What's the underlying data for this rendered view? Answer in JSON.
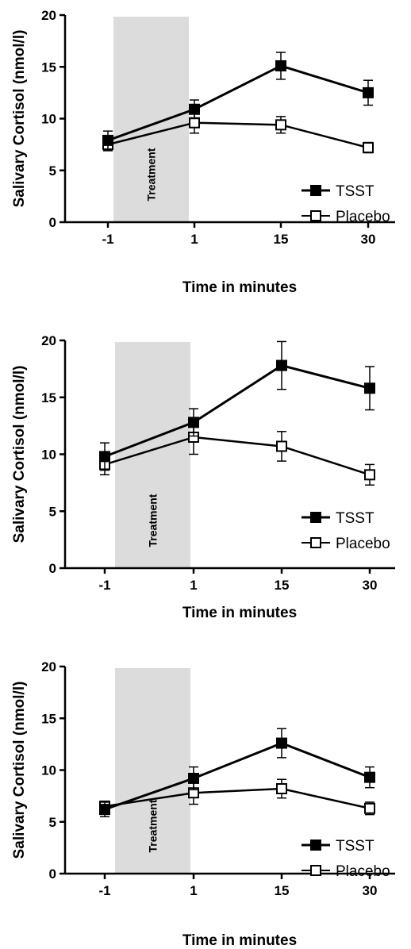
{
  "chart_data": [
    {
      "type": "line",
      "xlabel": "Time in minutes",
      "ylabel": "Salivary Cortisol (nmol/l)",
      "categories": [
        "-1",
        "1",
        "15",
        "30"
      ],
      "ylim": [
        0,
        20
      ],
      "yticks": [
        0,
        5,
        10,
        15,
        20
      ],
      "shaded_region": {
        "label": "Treatment",
        "from": "-1",
        "to": "1"
      },
      "legend_position": "bottom-right",
      "series": [
        {
          "name": "TSST",
          "marker": "filled-square",
          "values": [
            7.9,
            10.9,
            15.1,
            12.5
          ],
          "errors": [
            0.9,
            0.9,
            1.3,
            1.2
          ]
        },
        {
          "name": "Placebo",
          "marker": "open-square",
          "values": [
            7.5,
            9.6,
            9.4,
            7.2
          ],
          "errors": [
            0.6,
            1.0,
            0.8,
            0.5
          ]
        }
      ]
    },
    {
      "type": "line",
      "xlabel": "Time in minutes",
      "ylabel": "Salivary Cortisol (nmol/l)",
      "categories": [
        "-1",
        "1",
        "15",
        "30"
      ],
      "ylim": [
        0,
        20
      ],
      "yticks": [
        0,
        5,
        10,
        15,
        20
      ],
      "shaded_region": {
        "label": "Treatment",
        "from": "-1",
        "to": "1"
      },
      "legend_position": "bottom-right",
      "series": [
        {
          "name": "TSST",
          "marker": "filled-square",
          "values": [
            9.8,
            12.8,
            17.8,
            15.8
          ],
          "errors": [
            1.2,
            1.2,
            2.1,
            1.9
          ]
        },
        {
          "name": "Placebo",
          "marker": "open-square",
          "values": [
            9.1,
            11.5,
            10.7,
            8.2
          ],
          "errors": [
            0.9,
            1.5,
            1.3,
            0.9
          ]
        }
      ]
    },
    {
      "type": "line",
      "xlabel": "Time in minutes",
      "ylabel": "Salivary Cortisol (nmol/l)",
      "categories": [
        "-1",
        "1",
        "15",
        "30"
      ],
      "ylim": [
        0,
        20
      ],
      "yticks": [
        0,
        5,
        10,
        15,
        20
      ],
      "shaded_region": {
        "label": "Treatment",
        "from": "-1",
        "to": "1"
      },
      "legend_position": "bottom-right",
      "series": [
        {
          "name": "TSST",
          "marker": "filled-square",
          "values": [
            6.2,
            9.2,
            12.6,
            9.3
          ],
          "errors": [
            0.7,
            1.1,
            1.4,
            1.0
          ]
        },
        {
          "name": "Placebo",
          "marker": "open-square",
          "values": [
            6.5,
            7.8,
            8.2,
            6.3
          ],
          "errors": [
            0.5,
            1.1,
            0.9,
            0.6
          ]
        }
      ]
    }
  ]
}
